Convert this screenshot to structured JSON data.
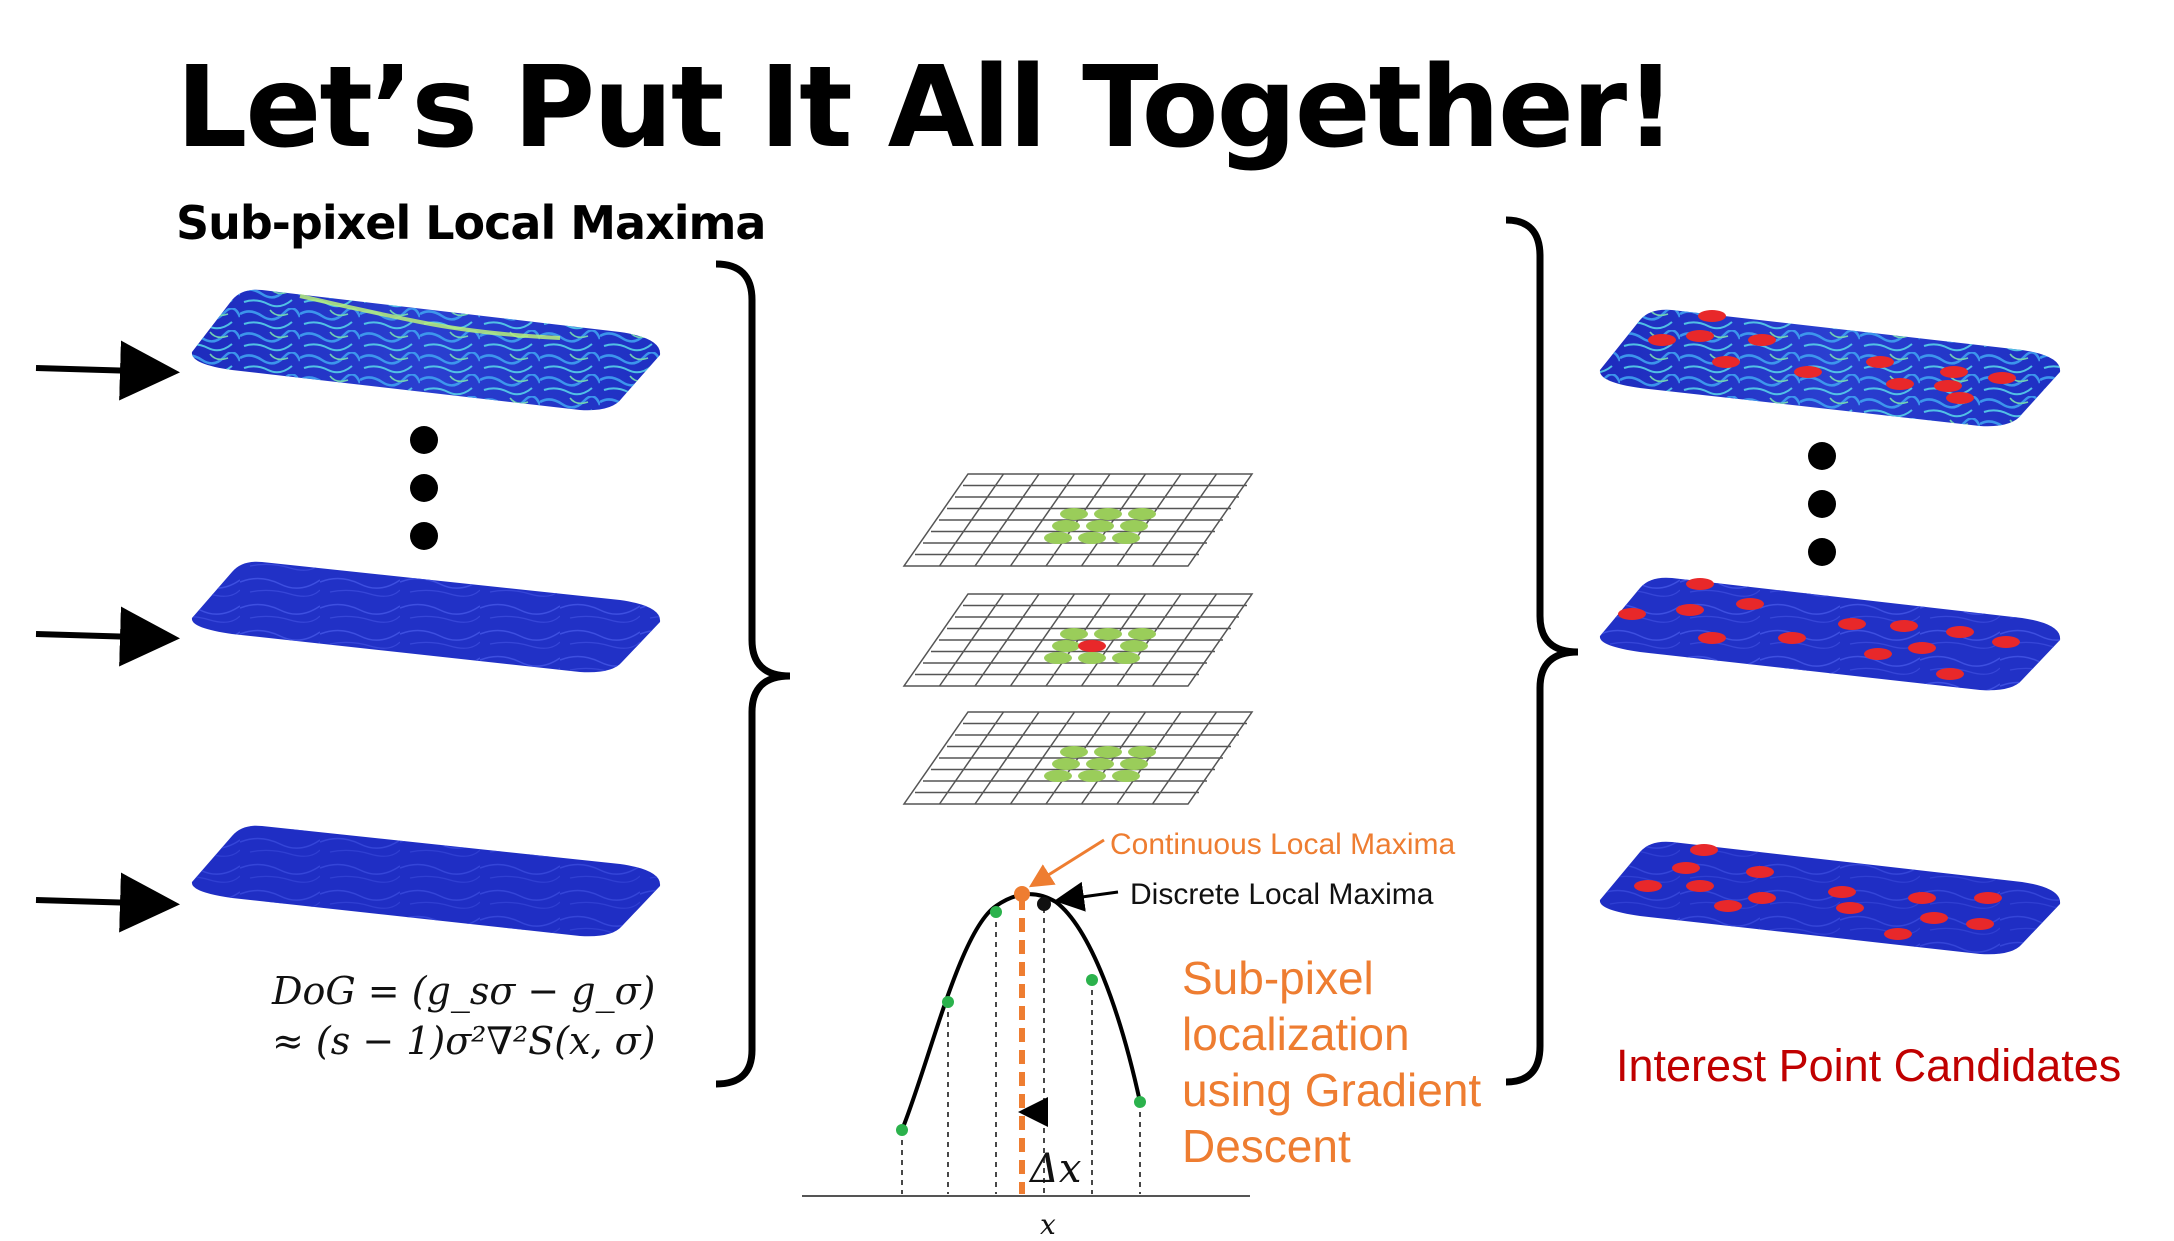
{
  "title": "Let’s Put It All Together!",
  "subtitle": "Sub-pixel Local Maxima",
  "formula": {
    "line1": "DoG = (g_sσ − g_σ)",
    "line2": "≈ (s − 1)σ²∇²S(x, σ)"
  },
  "labels": {
    "continuous": "Continuous Local Maxima",
    "discrete": "Discrete Local Maxima",
    "subpixel": [
      "Sub-pixel",
      "localization",
      "using Gradient",
      "Descent"
    ],
    "delta_x": "Δx",
    "x_axis": "x",
    "output": "Interest Point Candidates"
  },
  "colors": {
    "heatmap_blue": "#2a34c8",
    "highlight_green": "#9acd5a",
    "center_red": "#e8282a",
    "orange": "#ee7d31",
    "dark_red": "#c00000",
    "point_green": "#2bb24c"
  }
}
